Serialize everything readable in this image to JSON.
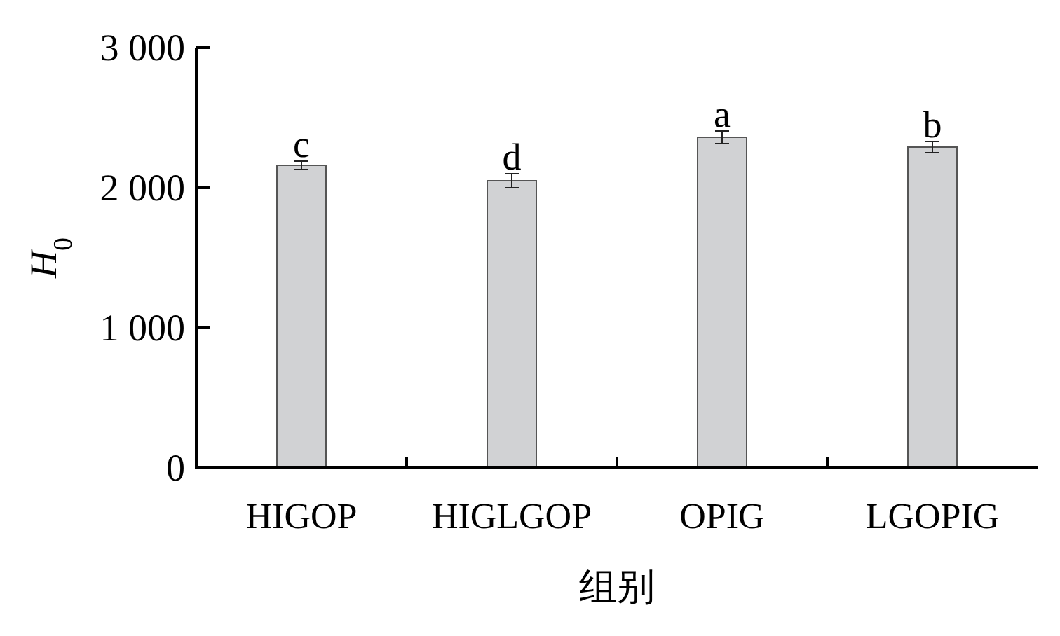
{
  "chart_data": {
    "type": "bar",
    "xlabel": "组别",
    "ylabel": "*H*$_{0}$",
    "categories": [
      "HIGOP",
      "HIGLGOP",
      "OPIG",
      "LGOPIG"
    ],
    "values": [
      2160,
      2050,
      2360,
      2290
    ],
    "errors": [
      30,
      50,
      45,
      40
    ],
    "color": "#d1d2d4",
    "ylim": [
      0,
      3000
    ],
    "yticks": [
      {
        "value": 0,
        "label": "0"
      },
      {
        "value": 1000,
        "label": "1 000"
      },
      {
        "value": 2000,
        "label": "2 000"
      },
      {
        "value": 3000,
        "label": "3 000"
      }
    ],
    "annotations": [
      {
        "text": "c",
        "x": "HIGOP",
        "y": 2190
      },
      {
        "text": "d",
        "x": "HIGLGOP",
        "y": 2100
      },
      {
        "text": "a",
        "x": "OPIG",
        "y": 2405
      },
      {
        "text": "b",
        "x": "LGOPIG",
        "y": 2330
      }
    ]
  }
}
